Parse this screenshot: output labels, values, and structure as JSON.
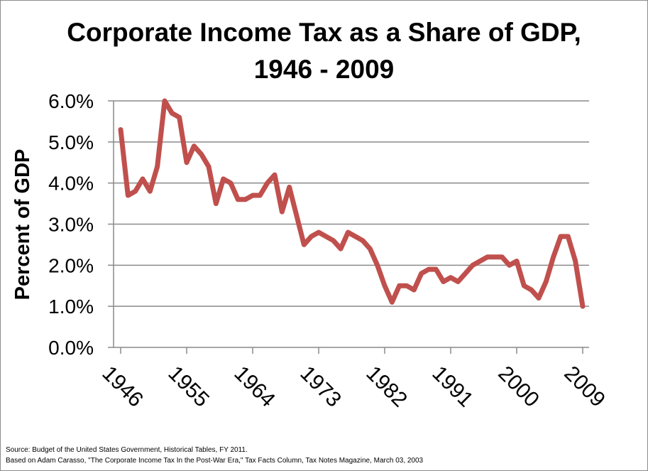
{
  "chart_data": {
    "type": "line",
    "title_lines": [
      "Corporate Income Tax as a Share of GDP,",
      "1946 - 2009"
    ],
    "ylabel": "Percent of GDP",
    "xlabel": "",
    "ylim": [
      0,
      6
    ],
    "yticks": [
      "0.0%",
      "1.0%",
      "2.0%",
      "3.0%",
      "4.0%",
      "5.0%",
      "6.0%"
    ],
    "xticks": [
      "1946",
      "1955",
      "1964",
      "1973",
      "1982",
      "1991",
      "2000",
      "2009"
    ],
    "grid": true,
    "legend": "none",
    "line_color": "#c0504d",
    "x": [
      1946,
      1947,
      1948,
      1949,
      1950,
      1951,
      1952,
      1953,
      1954,
      1955,
      1956,
      1957,
      1958,
      1959,
      1960,
      1961,
      1962,
      1963,
      1964,
      1965,
      1966,
      1967,
      1968,
      1969,
      1970,
      1971,
      1972,
      1973,
      1974,
      1975,
      1976,
      1977,
      1978,
      1979,
      1980,
      1981,
      1982,
      1983,
      1984,
      1985,
      1986,
      1987,
      1988,
      1989,
      1990,
      1991,
      1992,
      1993,
      1994,
      1995,
      1996,
      1997,
      1998,
      1999,
      2000,
      2001,
      2002,
      2003,
      2004,
      2005,
      2006,
      2007,
      2008,
      2009
    ],
    "values": [
      5.3,
      3.7,
      3.8,
      4.1,
      3.8,
      4.4,
      6.0,
      5.7,
      5.6,
      4.5,
      4.9,
      4.7,
      4.4,
      3.5,
      4.1,
      4.0,
      3.6,
      3.6,
      3.7,
      3.7,
      4.0,
      4.2,
      3.3,
      3.9,
      3.2,
      2.5,
      2.7,
      2.8,
      2.7,
      2.6,
      2.4,
      2.8,
      2.7,
      2.6,
      2.4,
      2.0,
      1.5,
      1.1,
      1.5,
      1.5,
      1.4,
      1.8,
      1.9,
      1.9,
      1.6,
      1.7,
      1.6,
      1.8,
      2.0,
      2.1,
      2.2,
      2.2,
      2.2,
      2.0,
      2.1,
      1.5,
      1.4,
      1.2,
      1.6,
      2.2,
      2.7,
      2.7,
      2.1,
      1.0
    ]
  },
  "source_lines": [
    "Source:  Budget of the United States Government, Historical Tables, FY 2011.",
    "Based on Adam Carasso, \"The Corporate Income Tax In the Post-War Era,\" Tax Facts Column, Tax Notes Magazine, March 03, 2003"
  ]
}
